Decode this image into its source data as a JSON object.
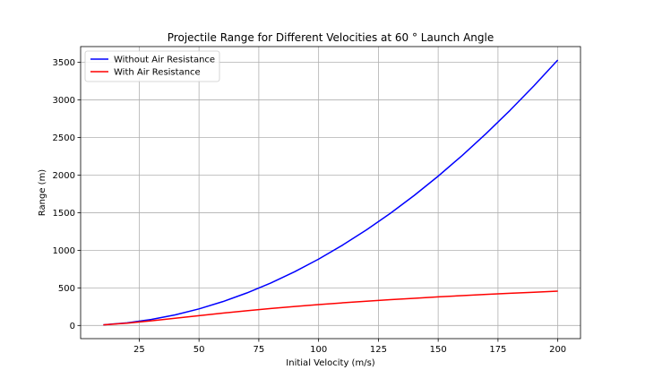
{
  "chart_data": {
    "type": "line",
    "title": "Projectile Range for Different Velocities at 60 ° Launch Angle",
    "xlabel": "Initial Velocity (m/s)",
    "ylabel": "Range (m)",
    "xlim": [
      0.5,
      209.5
    ],
    "ylim": [
      -175,
      3710
    ],
    "xticks": [
      25,
      50,
      75,
      100,
      125,
      150,
      175,
      200
    ],
    "yticks": [
      0,
      500,
      1000,
      1500,
      2000,
      2500,
      3000,
      3500
    ],
    "grid": true,
    "legend_position": "top-left",
    "x": [
      10,
      20,
      30,
      40,
      50,
      60,
      70,
      80,
      90,
      100,
      110,
      120,
      130,
      140,
      150,
      160,
      170,
      180,
      190,
      200
    ],
    "series": [
      {
        "name": "Without Air Resistance",
        "color": "#0000ff",
        "values": [
          8.8,
          35.3,
          79.5,
          141.3,
          220.7,
          317.8,
          432.6,
          565.0,
          715.1,
          882.8,
          1068.2,
          1271.3,
          1492.0,
          1730.4,
          1986.4,
          2260.1,
          2551.5,
          2860.5,
          3187.2,
          3531.5
        ]
      },
      {
        "name": "With Air Resistance",
        "color": "#ff0000",
        "values": [
          8.5,
          31,
          62,
          96,
          131,
          164,
          196,
          226,
          253,
          278,
          301,
          323,
          343,
          362,
          380,
          397,
          413,
          428,
          442,
          456
        ]
      }
    ]
  }
}
